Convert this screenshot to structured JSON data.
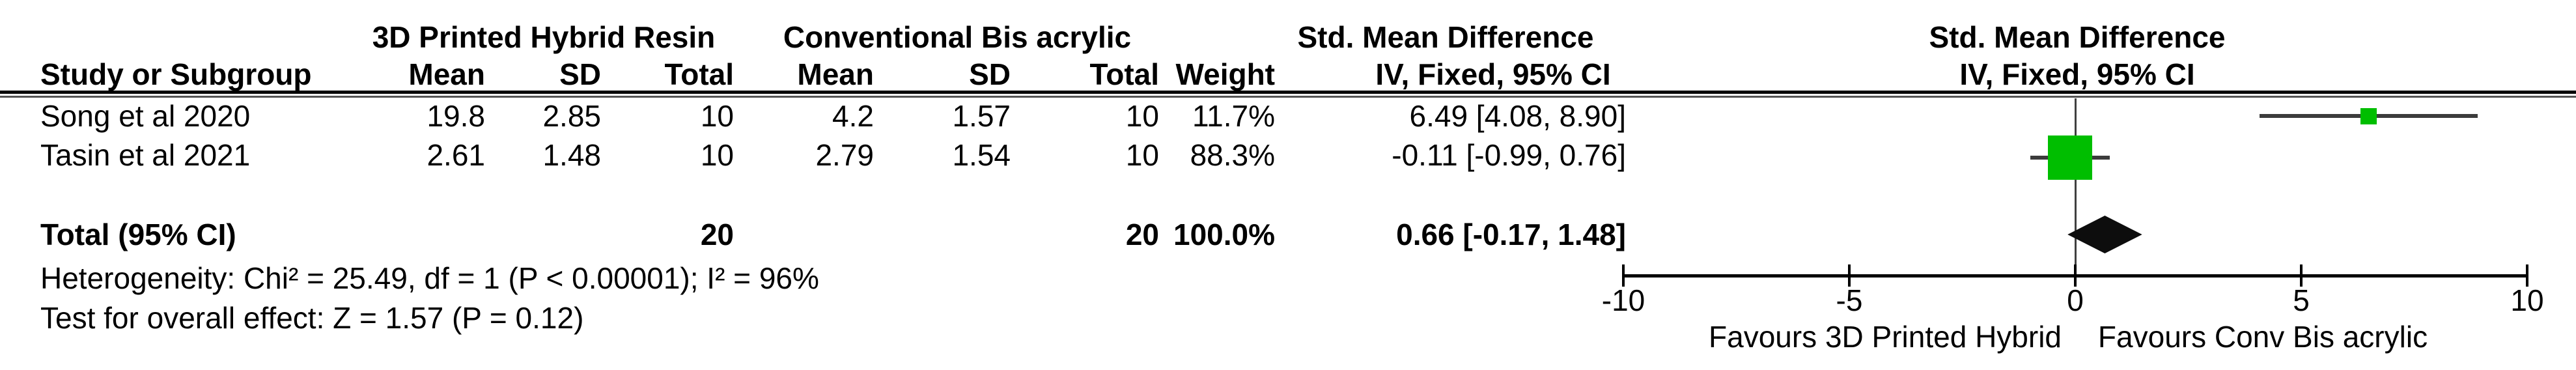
{
  "table": {
    "group1_header": "3D Printed Hybrid Resin",
    "group2_header": "Conventional Bis acrylic",
    "smd_header": "Std. Mean Difference",
    "plot_smd_header": "Std. Mean Difference",
    "method_header": "IV, Fixed, 95% CI",
    "plot_method_header": "IV, Fixed, 95% CI",
    "col_study": "Study or Subgroup",
    "col_mean1": "Mean",
    "col_sd1": "SD",
    "col_total1": "Total",
    "col_mean2": "Mean",
    "col_sd2": "SD",
    "col_total2": "Total",
    "col_weight": "Weight",
    "rows": [
      {
        "study": "Song et al 2020",
        "mean1": "19.8",
        "sd1": "2.85",
        "total1": "10",
        "mean2": "4.2",
        "sd2": "1.57",
        "total2": "10",
        "weight": "11.7%",
        "ci": "6.49 [4.08, 8.90]"
      },
      {
        "study": "Tasin et al 2021",
        "mean1": "2.61",
        "sd1": "1.48",
        "total1": "10",
        "mean2": "2.79",
        "sd2": "1.54",
        "total2": "10",
        "weight": "88.3%",
        "ci": "-0.11 [-0.99, 0.76]"
      }
    ],
    "total_row": {
      "label": "Total (95% CI)",
      "total1": "20",
      "total2": "20",
      "weight": "100.0%",
      "ci": "0.66 [-0.17, 1.48]"
    },
    "heterogeneity": "Heterogeneity: Chi² = 25.49, df = 1 (P < 0.00001); I² = 96%",
    "overall_effect": "Test for overall effect: Z = 1.57 (P = 0.12)"
  },
  "plot": {
    "favours_left": "Favours 3D Printed Hybrid",
    "favours_right": "Favours Conv Bis acrylic"
  },
  "chart_data": {
    "type": "forest",
    "effect_measure": "Std. Mean Difference",
    "method": "IV, Fixed, 95% CI",
    "xlim": [
      -10,
      10
    ],
    "xticks": [
      -10,
      -5,
      0,
      5,
      10
    ],
    "studies": [
      {
        "name": "Song et al 2020",
        "mean_exp": 19.8,
        "sd_exp": 2.85,
        "n_exp": 10,
        "mean_ctl": 4.2,
        "sd_ctl": 1.57,
        "n_ctl": 10,
        "weight_pct": 11.7,
        "smd": 6.49,
        "ci_low": 4.08,
        "ci_high": 8.9
      },
      {
        "name": "Tasin et al 2021",
        "mean_exp": 2.61,
        "sd_exp": 1.48,
        "n_exp": 10,
        "mean_ctl": 2.79,
        "sd_ctl": 1.54,
        "n_ctl": 10,
        "weight_pct": 88.3,
        "smd": -0.11,
        "ci_low": -0.99,
        "ci_high": 0.76
      }
    ],
    "total": {
      "n_exp": 20,
      "n_ctl": 20,
      "weight_pct": 100.0,
      "smd": 0.66,
      "ci_low": -0.17,
      "ci_high": 1.48
    },
    "heterogeneity": {
      "chi2": 25.49,
      "df": 1,
      "p": "< 0.00001",
      "i2_pct": 96
    },
    "overall_effect": {
      "z": 1.57,
      "p": 0.12
    },
    "favours_left": "Favours 3D Printed Hybrid",
    "favours_right": "Favours Conv Bis acrylic",
    "marker_color": "#00be00",
    "ci_line_color": "#3c3c3c",
    "diamond_color": "#0d0d0d",
    "axis_color": "#000000"
  }
}
